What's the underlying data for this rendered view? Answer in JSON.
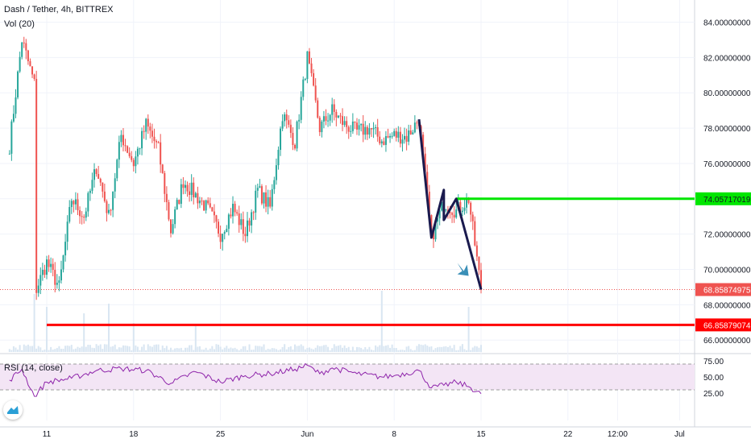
{
  "header": {
    "symbol": "Dash / Tether, 4h, BITTREX",
    "volume_label": "Vol (20)",
    "rsi_label": "RSI (14, close)"
  },
  "colors": {
    "up": "#26a69a",
    "down": "#ef5350",
    "resistance": "#00e600",
    "support": "#ff0000",
    "rsi_line": "#8e24aa",
    "rsi_band": "#f3e5f5",
    "arrow": "#3a8fb7",
    "drawing": "#1a1a4e"
  },
  "chart_data": [
    {
      "type": "candlestick",
      "title": "Dash / Tether, 4h, BITTREX",
      "price_axis": {
        "ticks": [
          "84.00000000",
          "82.00000000",
          "80.00000000",
          "78.00000000",
          "76.00000000",
          "74.00000000",
          "72.00000000",
          "70.00000000",
          "68.00000000",
          "66.00000000"
        ],
        "ylim": [
          65.5,
          84.5
        ]
      },
      "time_axis": {
        "ticks": [
          "11",
          "18",
          "25",
          "Jun",
          "8",
          "15",
          "22",
          "12:00",
          "Jul"
        ]
      },
      "price_path": [
        [
          "May 8",
          77.0
        ],
        [
          "May 9",
          83.0
        ],
        [
          "May 10",
          80.5
        ],
        [
          "May 10",
          68.6
        ],
        [
          "May 11",
          70.4
        ],
        [
          "May 12",
          69.0
        ],
        [
          "May 13",
          74.0
        ],
        [
          "May 14",
          73.0
        ],
        [
          "May 15",
          75.8
        ],
        [
          "May 16",
          73.0
        ],
        [
          "May 17",
          77.6
        ],
        [
          "May 18",
          76.0
        ],
        [
          "May 19",
          78.2
        ],
        [
          "May 20",
          76.8
        ],
        [
          "May 21",
          72.2
        ],
        [
          "May 22",
          75.0
        ],
        [
          "May 23",
          74.2
        ],
        [
          "May 24",
          73.4
        ],
        [
          "May 25",
          72.0
        ],
        [
          "May 26",
          73.5
        ],
        [
          "May 27",
          72.0
        ],
        [
          "May 28",
          74.5
        ],
        [
          "May 29",
          73.5
        ],
        [
          "May 30",
          78.8
        ],
        [
          "May 31",
          77.2
        ],
        [
          "Jun 1",
          82.0
        ],
        [
          "Jun 2",
          78.0
        ],
        [
          "Jun 3",
          79.0
        ],
        [
          "Jun 4",
          78.2
        ],
        [
          "Jun 5",
          77.8
        ],
        [
          "Jun 6",
          78.0
        ],
        [
          "Jun 7",
          77.3
        ],
        [
          "Jun 8",
          77.6
        ],
        [
          "Jun 9",
          77.5
        ],
        [
          "Jun 10",
          78.5
        ],
        [
          "Jun 11",
          71.8
        ],
        [
          "Jun 12",
          73.8
        ],
        [
          "Jun 13",
          73.3
        ],
        [
          "Jun 14",
          74.0
        ],
        [
          "Jun 15",
          68.86
        ]
      ],
      "volume_spikes": [
        [
          "May 10",
          0.9
        ],
        [
          "May 11",
          0.7
        ],
        [
          "May 14",
          0.6
        ],
        [
          "May 16",
          0.75
        ],
        [
          "May 18",
          0.45
        ],
        [
          "May 23",
          0.4
        ],
        [
          "Jun 7",
          0.95
        ],
        [
          "Jun 14",
          0.7
        ]
      ],
      "lines": {
        "resistance": {
          "price": 74.0,
          "from": "Jun 13",
          "label": "74.05717019"
        },
        "support": {
          "price": 66.86,
          "from": "May 11",
          "label": "66.85879074"
        },
        "last_price": {
          "price": 68.86,
          "label": "68.85874975"
        }
      },
      "annotations": [
        {
          "type": "zigzag",
          "points": [
            [
              "Jun 10",
              78.5
            ],
            [
              "Jun 11",
              71.8
            ],
            [
              "Jun 12",
              74.5
            ],
            [
              "Jun 12",
              72.8
            ],
            [
              "Jun 13",
              74.0
            ],
            [
              "Jun 15",
              68.86
            ]
          ]
        },
        {
          "type": "arrow",
          "direction": "down-right",
          "near": [
            "Jun 14",
            70.0
          ]
        }
      ]
    },
    {
      "type": "line",
      "title": "RSI (14, close)",
      "ticks": [
        "75.00",
        "50.00",
        "25.00"
      ],
      "ylim": [
        17,
        78
      ],
      "band": [
        30,
        70
      ],
      "values": [
        [
          "May 8",
          45
        ],
        [
          "May 9",
          62
        ],
        [
          "May 10",
          20
        ],
        [
          "May 11",
          42
        ],
        [
          "May 13",
          48
        ],
        [
          "May 15",
          60
        ],
        [
          "May 17",
          63
        ],
        [
          "May 19",
          60
        ],
        [
          "May 21",
          40
        ],
        [
          "May 23",
          58
        ],
        [
          "May 25",
          42
        ],
        [
          "May 27",
          52
        ],
        [
          "May 29",
          55
        ],
        [
          "May 31",
          62
        ],
        [
          "Jun 1",
          68
        ],
        [
          "Jun 2",
          55
        ],
        [
          "Jun 3",
          64
        ],
        [
          "Jun 5",
          55
        ],
        [
          "Jun 7",
          50
        ],
        [
          "Jun 8",
          52
        ],
        [
          "Jun 10",
          60
        ],
        [
          "Jun 11",
          33
        ],
        [
          "Jun 12",
          37
        ],
        [
          "Jun 13",
          42
        ],
        [
          "Jun 14",
          35
        ],
        [
          "Jun 15",
          24
        ]
      ]
    }
  ]
}
